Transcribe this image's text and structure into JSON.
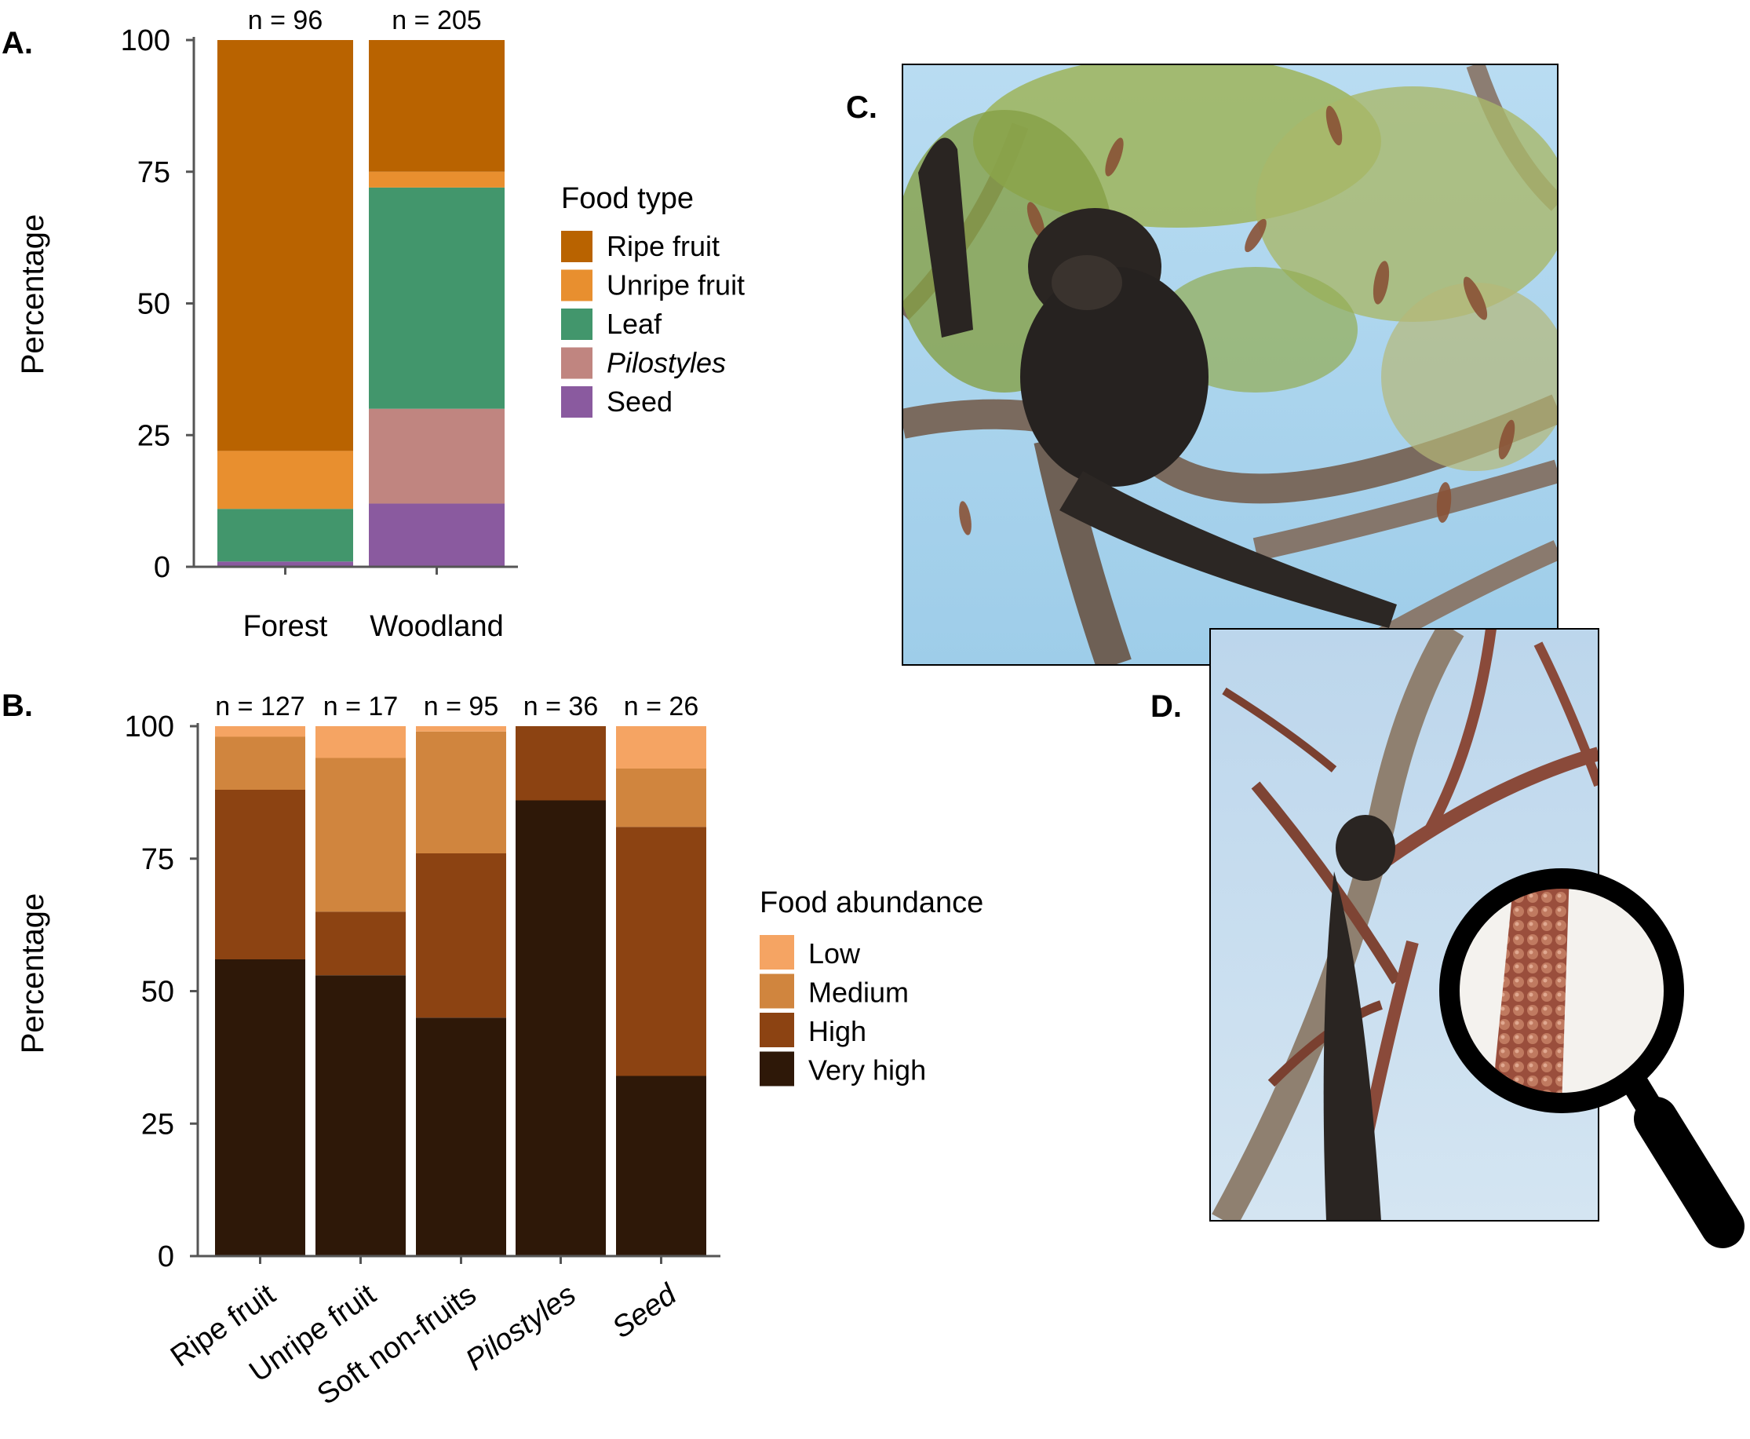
{
  "panels": {
    "a": "A.",
    "b": "B.",
    "c": "C.",
    "d": "D."
  },
  "chart_data": [
    {
      "type": "bar",
      "stacked": true,
      "panel": "A.",
      "ylabel": "Percentage",
      "ylim": [
        0,
        100
      ],
      "yticks": [
        "0",
        "25",
        "50",
        "75",
        "100"
      ],
      "categories": [
        "Forest",
        "Woodland"
      ],
      "n_labels": [
        "n = 96",
        "n = 205"
      ],
      "legend_title": "Food type",
      "legend_position": "right",
      "series": [
        {
          "name": "Seed",
          "italic": false,
          "color": "#8a5a9f",
          "values": [
            1,
            12
          ]
        },
        {
          "name": "Pilostyles",
          "italic": true,
          "color": "#c08580",
          "values": [
            0,
            18
          ]
        },
        {
          "name": "Leaf",
          "italic": false,
          "color": "#42966c",
          "values": [
            10,
            42
          ]
        },
        {
          "name": "Unripe fruit",
          "italic": false,
          "color": "#e88f2f",
          "values": [
            11,
            3
          ]
        },
        {
          "name": "Ripe fruit",
          "italic": false,
          "color": "#b96300",
          "values": [
            78,
            25
          ]
        }
      ],
      "legend_order": [
        "Ripe fruit",
        "Unripe fruit",
        "Leaf",
        "Pilostyles",
        "Seed"
      ]
    },
    {
      "type": "bar",
      "stacked": true,
      "panel": "B.",
      "ylabel": "Percentage",
      "ylim": [
        0,
        100
      ],
      "yticks": [
        "0",
        "25",
        "50",
        "75",
        "100"
      ],
      "categories": [
        "Ripe fruit",
        "Unripe fruit",
        "Soft non-fruits",
        "Pilostyles",
        "Seed"
      ],
      "italic_categories": [
        "Pilostyles",
        "Seed"
      ],
      "n_labels": [
        "n = 127",
        "n = 17",
        "n = 95",
        "n = 36",
        "n = 26"
      ],
      "legend_title": "Food abundance",
      "legend_position": "right",
      "series": [
        {
          "name": "Very high",
          "color": "#2e1808",
          "values": [
            56,
            53,
            45,
            86,
            34
          ]
        },
        {
          "name": "High",
          "color": "#8c4312",
          "values": [
            32,
            12,
            31,
            14,
            47
          ]
        },
        {
          "name": "Medium",
          "color": "#d0853e",
          "values": [
            10,
            29,
            23,
            0,
            11
          ]
        },
        {
          "name": "Low",
          "color": "#f5a463",
          "values": [
            2,
            6,
            1,
            0,
            8
          ]
        }
      ],
      "legend_order": [
        "Low",
        "Medium",
        "High",
        "Very high"
      ]
    }
  ],
  "photos": {
    "c": {
      "subject": "chimpanzee feeding in tree with leaves and pods",
      "sky_color": "#a9d3ee",
      "foliage_color": "#8fa64a"
    },
    "d": {
      "subject": "chimpanzee climbing branches covered in Pilostyles",
      "sky_color": "#c5dcee",
      "branch_color": "#8c4a3a",
      "magnifier_color": "#000000"
    }
  }
}
